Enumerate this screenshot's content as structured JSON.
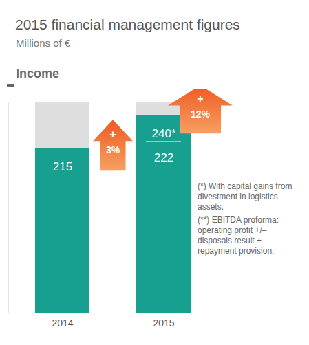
{
  "chart_data": {
    "type": "bar",
    "title": "2015 financial management figures",
    "subtitle": "Millions of €",
    "section": "Income",
    "categories": [
      "2014",
      "2015"
    ],
    "values": [
      215,
      240
    ],
    "value_labels": [
      "215",
      "240*"
    ],
    "secondary_values": [
      null,
      222
    ],
    "color": "#17a090",
    "ylim": [
      90,
      250
    ],
    "yticks": [],
    "tick_labels": "x",
    "data_labels": true,
    "annotations": [
      {
        "lines": [
          "+",
          "3%"
        ]
      },
      {
        "lines": [
          "+",
          "12%"
        ]
      }
    ],
    "notes": [
      "(*) With capital gains from divestment in logistics assets.",
      "(**) EBITDA proforma: operating profit +/– disposals result + repayment provision."
    ]
  }
}
